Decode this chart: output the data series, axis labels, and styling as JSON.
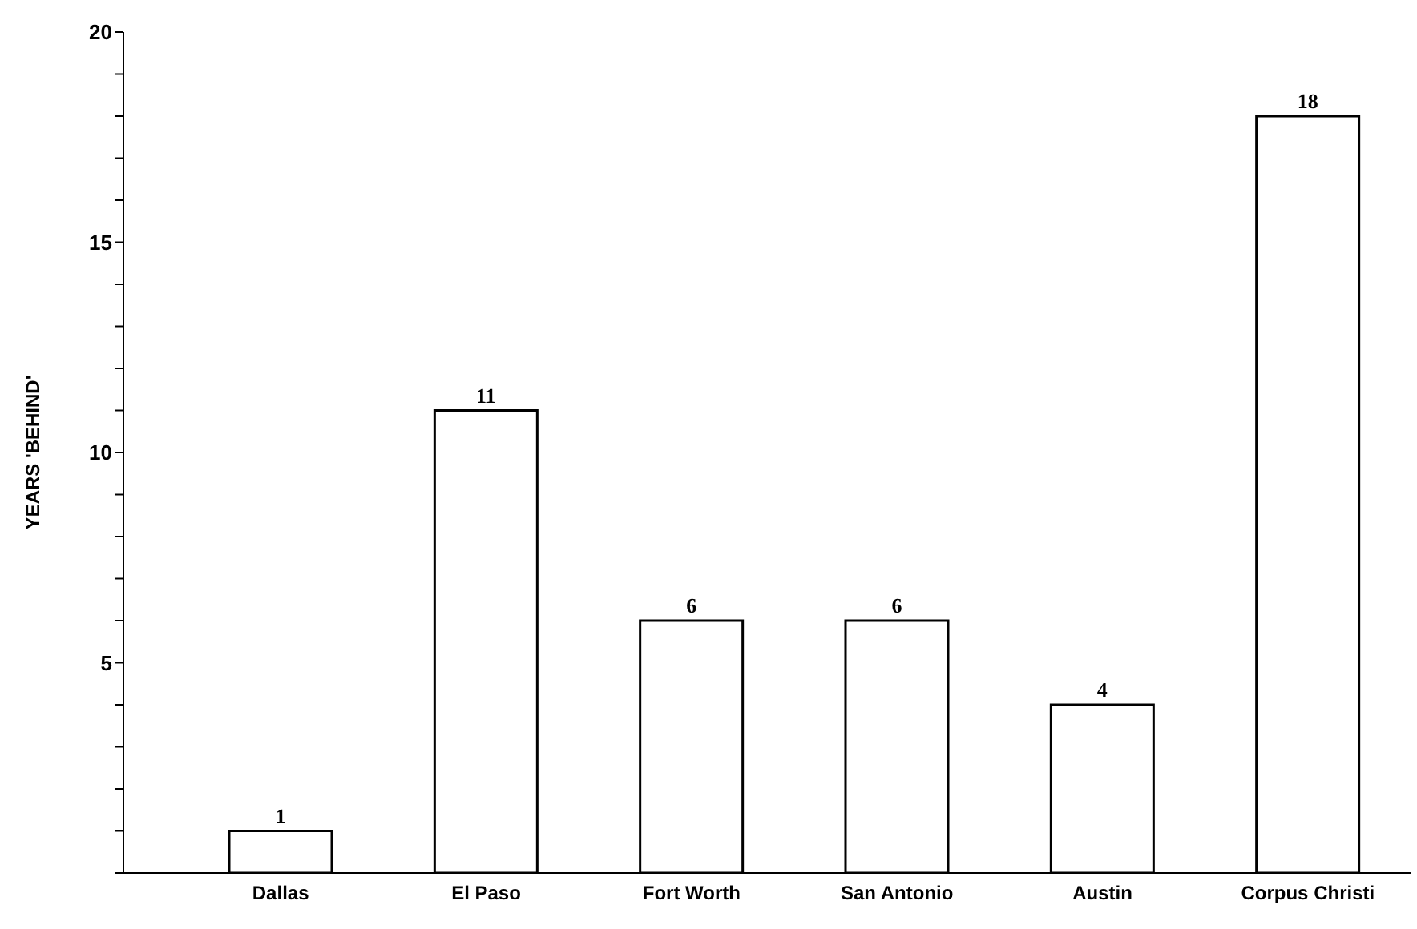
{
  "chart_data": {
    "type": "bar",
    "ylabel": "YEARS 'BEHIND'",
    "categories": [
      "Dallas",
      "El Paso",
      "Fort Worth",
      "San Antonio",
      "Austin",
      "Corpus Christi"
    ],
    "values": [
      1,
      11,
      6,
      6,
      4,
      18
    ],
    "color": "#ffffff",
    "ylim": [
      0,
      20
    ],
    "yticks": [
      {
        "value": 0,
        "label": null
      },
      {
        "value": 1,
        "label": null
      },
      {
        "value": 2,
        "label": null
      },
      {
        "value": 3,
        "label": null
      },
      {
        "value": 4,
        "label": null
      },
      5,
      {
        "value": 6,
        "label": null
      },
      {
        "value": 7,
        "label": null
      },
      {
        "value": 8,
        "label": null
      },
      {
        "value": 9,
        "label": null
      },
      10,
      {
        "value": 11,
        "label": null
      },
      {
        "value": 12,
        "label": null
      },
      {
        "value": 13,
        "label": null
      },
      {
        "value": 14,
        "label": null
      },
      15,
      {
        "value": 16,
        "label": null
      },
      {
        "value": 17,
        "label": null
      },
      {
        "value": 18,
        "label": null
      },
      {
        "value": 19,
        "label": null
      },
      20
    ],
    "data_labels": true,
    "grid": false,
    "legend": false
  }
}
